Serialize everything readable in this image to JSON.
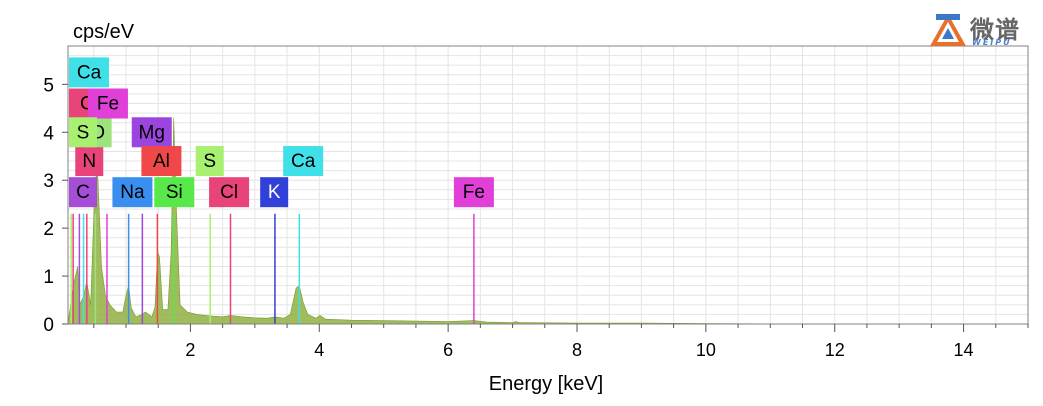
{
  "logo": {
    "name": "微谱",
    "sub": "WEIPU"
  },
  "chart_data": {
    "type": "spectrum",
    "ylabel": "cps/eV",
    "xlabel": "Energy [keV]",
    "xlim": [
      0.1,
      15
    ],
    "ylim": [
      0,
      5.8
    ],
    "xticks": [
      2,
      4,
      6,
      8,
      10,
      12,
      14
    ],
    "yticks": [
      0,
      1,
      2,
      3,
      4,
      5
    ],
    "grid": true,
    "spectrum": {
      "color": "#8fb040",
      "points": [
        [
          0.1,
          0
        ],
        [
          0.18,
          0.8
        ],
        [
          0.25,
          1.2
        ],
        [
          0.28,
          0.4
        ],
        [
          0.35,
          0.6
        ],
        [
          0.39,
          0.9
        ],
        [
          0.45,
          0.4
        ],
        [
          0.52,
          3.0
        ],
        [
          0.56,
          3.2
        ],
        [
          0.62,
          1.2
        ],
        [
          0.68,
          0.6
        ],
        [
          0.75,
          0.4
        ],
        [
          0.85,
          0.25
        ],
        [
          0.95,
          0.25
        ],
        [
          1.0,
          0.6
        ],
        [
          1.04,
          0.8
        ],
        [
          1.08,
          0.35
        ],
        [
          1.15,
          0.15
        ],
        [
          1.25,
          0.2
        ],
        [
          1.3,
          0.25
        ],
        [
          1.4,
          0.15
        ],
        [
          1.45,
          0.35
        ],
        [
          1.49,
          1.5
        ],
        [
          1.52,
          1.4
        ],
        [
          1.57,
          0.3
        ],
        [
          1.65,
          0.3
        ],
        [
          1.7,
          1.5
        ],
        [
          1.74,
          4.3
        ],
        [
          1.78,
          2.5
        ],
        [
          1.84,
          0.4
        ],
        [
          1.95,
          0.25
        ],
        [
          2.1,
          0.2
        ],
        [
          2.3,
          0.17
        ],
        [
          2.5,
          0.15
        ],
        [
          2.62,
          0.18
        ],
        [
          2.8,
          0.15
        ],
        [
          3.0,
          0.13
        ],
        [
          3.2,
          0.12
        ],
        [
          3.31,
          0.15
        ],
        [
          3.45,
          0.12
        ],
        [
          3.55,
          0.2
        ],
        [
          3.64,
          0.75
        ],
        [
          3.69,
          0.8
        ],
        [
          3.75,
          0.45
        ],
        [
          3.82,
          0.2
        ],
        [
          3.95,
          0.12
        ],
        [
          4.01,
          0.18
        ],
        [
          4.1,
          0.1
        ],
        [
          4.5,
          0.08
        ],
        [
          5.0,
          0.07
        ],
        [
          5.5,
          0.06
        ],
        [
          6.0,
          0.05
        ],
        [
          6.4,
          0.07
        ],
        [
          6.6,
          0.04
        ],
        [
          7.0,
          0.03
        ],
        [
          7.06,
          0.05
        ],
        [
          7.1,
          0.03
        ],
        [
          8.0,
          0.02
        ],
        [
          9.0,
          0.02
        ],
        [
          10.0,
          0.01
        ],
        [
          11.0,
          0.005
        ],
        [
          12.0,
          0.003
        ],
        [
          15.0,
          0
        ]
      ]
    },
    "element_lines": [
      {
        "symbol": "C",
        "energy": 0.277,
        "height": 2.3,
        "color": "#a64dd8",
        "label_y": 2.75,
        "label_x": 0.26
      },
      {
        "symbol": "N",
        "energy": 0.392,
        "height": 2.3,
        "color": "#e8447a",
        "label_y": 3.4,
        "label_x": 0.43
      },
      {
        "symbol": "O",
        "energy": 0.525,
        "height": 2.3,
        "color": "#9be37a",
        "label_y": 4.0,
        "label_x": 0.56
      },
      {
        "symbol": "Na",
        "energy": 1.041,
        "height": 2.3,
        "color": "#3a8ef0",
        "label_y": 2.75,
        "label_x": 1.1
      },
      {
        "symbol": "Mg",
        "energy": 1.254,
        "height": 2.3,
        "color": "#9b45e0",
        "label_y": 4.0,
        "label_x": 1.4
      },
      {
        "symbol": "Al",
        "energy": 1.487,
        "height": 2.3,
        "color": "#f04848",
        "label_y": 3.4,
        "label_x": 1.55
      },
      {
        "symbol": "Si",
        "energy": 1.74,
        "height": 2.3,
        "color": "#58e84a",
        "label_y": 2.75,
        "label_x": 1.75
      },
      {
        "symbol": "S",
        "energy": 2.307,
        "height": 2.3,
        "color": "#a8f070",
        "label_y": 3.4,
        "label_x": 2.3
      },
      {
        "symbol": "Cl",
        "energy": 2.622,
        "height": 2.3,
        "color": "#e8447a",
        "label_y": 2.75,
        "label_x": 2.6
      },
      {
        "symbol": "K",
        "energy": 3.312,
        "height": 2.3,
        "color": "#3040d8",
        "label_y": 2.75,
        "label_x": 3.3
      },
      {
        "symbol": "Ca",
        "energy": 3.69,
        "height": 2.3,
        "color": "#40e0e8",
        "label_y": 3.4,
        "label_x": 3.75
      },
      {
        "symbol": "Fe",
        "energy": 6.4,
        "height": 2.3,
        "color": "#e040d8",
        "label_y": 2.75,
        "label_x": 6.4
      },
      {
        "symbol": "Ca",
        "energy": 0.341,
        "height": 2.3,
        "color": "#40e0e8",
        "label_y": 5.25,
        "label_x": 0.34
      },
      {
        "symbol": "Cl",
        "energy": 0.18,
        "height": 2.3,
        "color": "#e8447a",
        "label_y": 4.6,
        "label_x": 0.18
      },
      {
        "symbol": "Fe",
        "energy": 0.705,
        "height": 2.3,
        "color": "#e040d8",
        "label_y": 4.6,
        "label_x": 0.72
      },
      {
        "symbol": "S",
        "energy": 0.149,
        "height": 2.3,
        "color": "#a8f070",
        "label_y": 4.0,
        "label_x": 0.18
      }
    ]
  }
}
